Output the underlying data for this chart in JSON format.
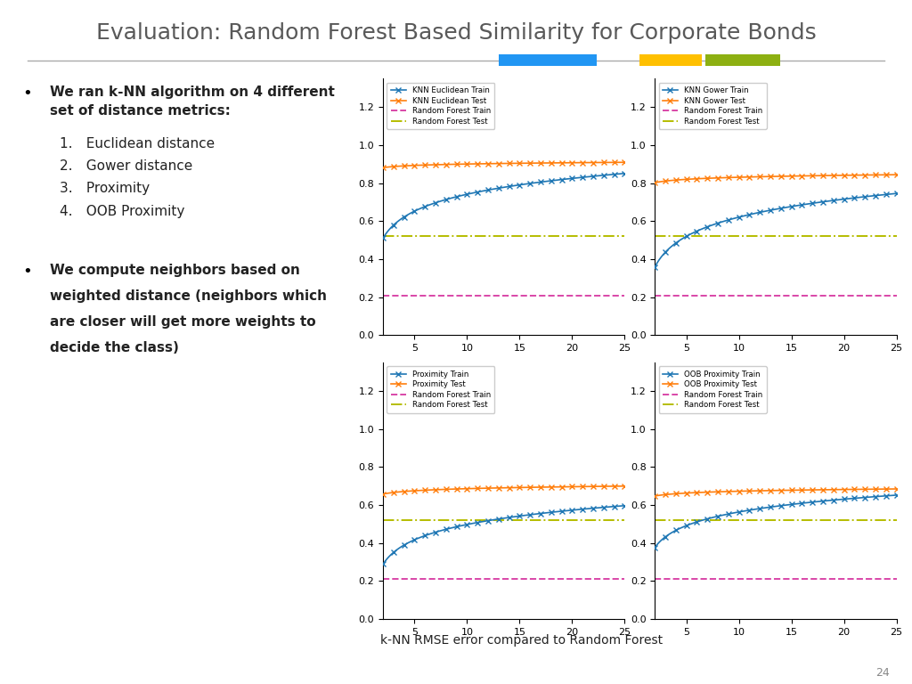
{
  "title": "Evaluation: Random Forest Based Similarity for Corporate Bonds",
  "subtitle": "k-NN RMSE error compared to Random Forest",
  "slide_number": "24",
  "bullet1_line1": "We ran k-NN algorithm on 4 different",
  "bullet1_line2": "set of distance metrics:",
  "list_items": [
    "Euclidean distance",
    "Gower distance",
    "Proximity",
    "OOB Proximity"
  ],
  "bullet2": "We compute neighbors based on\nweighted distance (neighbors which\nare closer will get more weights to\ndecide the class)",
  "rf_train_value": 0.21,
  "rf_test_value": 0.52,
  "colors": {
    "train": "#1f77b4",
    "test": "#ff7f0e",
    "rf_train": "#d946a8",
    "rf_test": "#b5bd00",
    "title": "#595959",
    "text": "#222222",
    "header_blue": "#2196f3",
    "header_gold": "#ffc000",
    "header_green": "#8db012",
    "line_color": "#aaaaaa"
  },
  "plots": [
    {
      "train_label": "KNN Euclidean Train",
      "test_label": "KNN Euclidean Test",
      "train_a": 0.49,
      "train_b": 0.365,
      "test_level": 0.88,
      "test_rise": 0.03
    },
    {
      "train_label": "KNN Gower Train",
      "test_label": "KNN Gower Test",
      "train_a": 0.335,
      "train_b": 0.415,
      "test_level": 0.8,
      "test_rise": 0.045
    },
    {
      "train_label": "Proximity Train",
      "test_label": "Proximity Test",
      "train_a": 0.27,
      "train_b": 0.33,
      "test_level": 0.655,
      "test_rise": 0.045
    },
    {
      "train_label": "OOB Proximity Train",
      "test_label": "OOB Proximity Test",
      "train_a": 0.36,
      "train_b": 0.295,
      "test_level": 0.645,
      "test_rise": 0.04
    }
  ]
}
